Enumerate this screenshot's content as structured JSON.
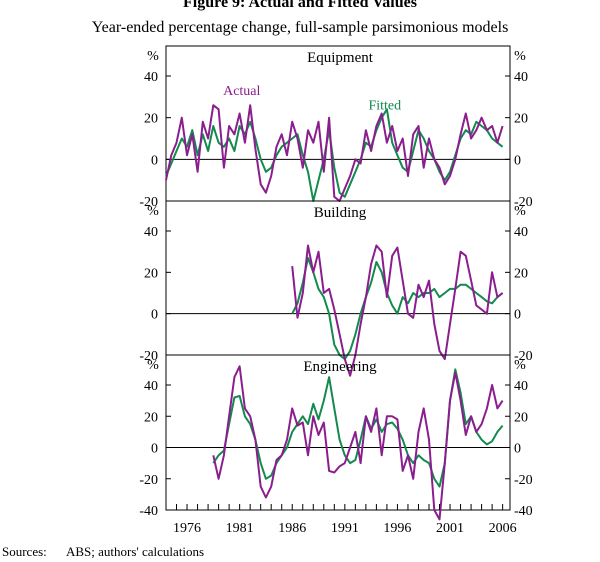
{
  "title": "Figure 9: Actual and Fitted Values",
  "subtitle": "Year-ended percentage change, full-sample parsimonious models",
  "source_label": "Sources:",
  "source_text": "ABS; authors' calculations",
  "colors": {
    "actual": "#8B1E8E",
    "fitted": "#138A4E"
  },
  "chart_data": [
    {
      "type": "line",
      "title": "Equipment",
      "ylabel": "%",
      "ylim": [
        -20,
        40
      ],
      "yticks": [
        -20,
        0,
        20,
        40
      ],
      "xlim": [
        1974,
        2006.7
      ],
      "series": [
        {
          "name": "Actual",
          "x": [
            1974.0,
            1974.5,
            1975.0,
            1975.5,
            1976.0,
            1976.5,
            1977.0,
            1977.5,
            1978.0,
            1978.5,
            1979.0,
            1979.5,
            1980.0,
            1980.5,
            1981.0,
            1981.5,
            1982.0,
            1982.5,
            1983.0,
            1983.5,
            1984.0,
            1984.5,
            1985.0,
            1985.5,
            1986.0,
            1986.5,
            1987.0,
            1987.5,
            1988.0,
            1988.5,
            1989.0,
            1989.5,
            1990.0,
            1990.5,
            1991.0,
            1991.5,
            1992.0,
            1992.5,
            1993.0,
            1993.5,
            1994.0,
            1994.5,
            1995.0,
            1995.5,
            1996.0,
            1996.5,
            1997.0,
            1997.5,
            1998.0,
            1998.5,
            1999.0,
            1999.5,
            2000.0,
            2000.5,
            2001.0,
            2001.5,
            2002.0,
            2002.5,
            2003.0,
            2003.5,
            2004.0,
            2004.5,
            2005.0,
            2005.5,
            2006.0
          ],
          "values": [
            -10,
            2,
            8,
            20,
            2,
            12,
            -6,
            18,
            10,
            26,
            24,
            -4,
            16,
            12,
            22,
            8,
            26,
            5,
            -12,
            -16,
            -8,
            6,
            12,
            2,
            18,
            10,
            -4,
            14,
            8,
            18,
            -6,
            20,
            -18,
            -20,
            -14,
            -8,
            0,
            -2,
            14,
            4,
            16,
            22,
            8,
            16,
            4,
            10,
            -8,
            12,
            16,
            -4,
            10,
            0,
            -4,
            -12,
            -8,
            0,
            12,
            22,
            10,
            14,
            20,
            14,
            16,
            8,
            16
          ]
        },
        {
          "name": "Fitted",
          "x": [
            1974.0,
            1974.5,
            1975.0,
            1975.5,
            1976.0,
            1976.5,
            1977.0,
            1977.5,
            1978.0,
            1978.5,
            1979.0,
            1979.5,
            1980.0,
            1980.5,
            1981.0,
            1981.5,
            1982.0,
            1982.5,
            1983.0,
            1983.5,
            1984.0,
            1984.5,
            1985.0,
            1985.5,
            1986.0,
            1986.5,
            1987.0,
            1987.5,
            1988.0,
            1988.5,
            1989.0,
            1989.5,
            1990.0,
            1990.5,
            1991.0,
            1991.5,
            1992.0,
            1992.5,
            1993.0,
            1993.5,
            1994.0,
            1994.5,
            1995.0,
            1995.5,
            1996.0,
            1996.5,
            1997.0,
            1997.5,
            1998.0,
            1998.5,
            1999.0,
            1999.5,
            2000.0,
            2000.5,
            2001.0,
            2001.5,
            2002.0,
            2002.5,
            2003.0,
            2003.5,
            2004.0,
            2004.5,
            2005.0,
            2005.5,
            2006.0
          ],
          "values": [
            -8,
            -2,
            4,
            10,
            6,
            14,
            2,
            12,
            4,
            16,
            8,
            6,
            10,
            4,
            16,
            12,
            18,
            10,
            0,
            -6,
            -4,
            2,
            6,
            8,
            10,
            12,
            2,
            -6,
            -20,
            -10,
            0,
            14,
            -4,
            -16,
            -18,
            -12,
            -6,
            0,
            8,
            6,
            14,
            20,
            24,
            8,
            2,
            -4,
            -6,
            4,
            14,
            10,
            4,
            0,
            -6,
            -10,
            -6,
            2,
            10,
            14,
            12,
            18,
            16,
            14,
            10,
            8,
            6
          ]
        }
      ],
      "annotations": [
        {
          "text": "Actual",
          "x": 1981.2,
          "y": 31
        },
        {
          "text": "Fitted",
          "x": 1994.8,
          "y": 24
        }
      ]
    },
    {
      "type": "line",
      "title": "Building",
      "ylabel": "%",
      "ylim": [
        -20,
        40
      ],
      "yticks": [
        -20,
        0,
        20,
        40
      ],
      "xlim": [
        1974,
        2006.7
      ],
      "series": [
        {
          "name": "Actual",
          "x": [
            1986.0,
            1986.5,
            1987.0,
            1987.5,
            1988.0,
            1988.5,
            1989.0,
            1989.5,
            1990.0,
            1990.5,
            1991.0,
            1991.5,
            1992.0,
            1992.5,
            1993.0,
            1993.5,
            1994.0,
            1994.5,
            1995.0,
            1995.5,
            1996.0,
            1996.5,
            1997.0,
            1997.5,
            1998.0,
            1998.5,
            1999.0,
            1999.5,
            2000.0,
            2000.5,
            2001.0,
            2001.5,
            2002.0,
            2002.5,
            2003.0,
            2003.5,
            2004.0,
            2004.5,
            2005.0,
            2005.5,
            2006.0
          ],
          "values": [
            23,
            -2,
            10,
            33,
            20,
            30,
            10,
            12,
            2,
            -10,
            -22,
            -30,
            -20,
            -5,
            8,
            24,
            33,
            30,
            8,
            28,
            32,
            16,
            0,
            -2,
            14,
            8,
            16,
            -5,
            -18,
            -22,
            -5,
            12,
            30,
            28,
            16,
            4,
            2,
            0,
            20,
            8,
            10
          ]
        },
        {
          "name": "Fitted",
          "x": [
            1986.0,
            1986.5,
            1987.0,
            1987.5,
            1988.0,
            1988.5,
            1989.0,
            1989.5,
            1990.0,
            1990.5,
            1991.0,
            1991.5,
            1992.0,
            1992.5,
            1993.0,
            1993.5,
            1994.0,
            1994.5,
            1995.0,
            1995.5,
            1996.0,
            1996.5,
            1997.0,
            1997.5,
            1998.0,
            1998.5,
            1999.0,
            1999.5,
            2000.0,
            2000.5,
            2001.0,
            2001.5,
            2002.0,
            2002.5,
            2003.0,
            2003.5,
            2004.0,
            2004.5,
            2005.0,
            2005.5,
            2006.0
          ],
          "values": [
            0,
            5,
            15,
            27,
            20,
            12,
            8,
            0,
            -15,
            -20,
            -22,
            -18,
            -10,
            0,
            8,
            15,
            25,
            20,
            10,
            4,
            0,
            8,
            5,
            10,
            8,
            10,
            10,
            12,
            8,
            10,
            12,
            12,
            14,
            14,
            12,
            10,
            8,
            6,
            5,
            8,
            10
          ]
        }
      ],
      "annotations": []
    },
    {
      "type": "line",
      "title": "Engineering",
      "ylabel": "%",
      "ylim": [
        -40,
        40
      ],
      "yticks": [
        -40,
        -20,
        0,
        20,
        40
      ],
      "xlim": [
        1974,
        2006.7
      ],
      "xticks": [
        1976,
        1981,
        1986,
        1991,
        1996,
        2001,
        2006
      ],
      "xticklabels": [
        "1976",
        "1981",
        "1986",
        "1991",
        "1996",
        "2001",
        "2006"
      ],
      "series": [
        {
          "name": "Actual",
          "x": [
            1978.5,
            1979.0,
            1979.5,
            1980.0,
            1980.5,
            1981.0,
            1981.5,
            1982.0,
            1982.5,
            1983.0,
            1983.5,
            1984.0,
            1984.5,
            1985.0,
            1985.5,
            1986.0,
            1986.5,
            1987.0,
            1987.5,
            1988.0,
            1988.5,
            1989.0,
            1989.5,
            1990.0,
            1990.5,
            1991.0,
            1991.5,
            1992.0,
            1992.5,
            1993.0,
            1993.5,
            1994.0,
            1994.5,
            1995.0,
            1995.5,
            1996.0,
            1996.5,
            1997.0,
            1997.5,
            1998.0,
            1998.5,
            1999.0,
            1999.5,
            2000.0,
            2000.5,
            2001.0,
            2001.5,
            2002.0,
            2002.5,
            2003.0,
            2003.5,
            2004.0,
            2004.5,
            2005.0,
            2005.5,
            2006.0
          ],
          "values": [
            -5,
            -20,
            -5,
            20,
            45,
            52,
            25,
            20,
            5,
            -25,
            -32,
            -25,
            -8,
            -5,
            5,
            25,
            14,
            16,
            -5,
            20,
            8,
            16,
            -15,
            -16,
            -12,
            -10,
            0,
            10,
            -10,
            20,
            10,
            25,
            -5,
            20,
            20,
            18,
            -15,
            -5,
            -20,
            10,
            25,
            5,
            -40,
            -46,
            -10,
            30,
            48,
            30,
            8,
            20,
            10,
            15,
            25,
            40,
            25,
            30
          ]
        },
        {
          "name": "Fitted",
          "x": [
            1978.5,
            1979.0,
            1979.5,
            1980.0,
            1980.5,
            1981.0,
            1981.5,
            1982.0,
            1982.5,
            1983.0,
            1983.5,
            1984.0,
            1984.5,
            1985.0,
            1985.5,
            1986.0,
            1986.5,
            1987.0,
            1987.5,
            1988.0,
            1988.5,
            1989.0,
            1989.5,
            1990.0,
            1990.5,
            1991.0,
            1991.5,
            1992.0,
            1992.5,
            1993.0,
            1993.5,
            1994.0,
            1994.5,
            1995.0,
            1995.5,
            1996.0,
            1996.5,
            1997.0,
            1997.5,
            1998.0,
            1998.5,
            1999.0,
            1999.5,
            2000.0,
            2000.5,
            2001.0,
            2001.5,
            2002.0,
            2002.5,
            2003.0,
            2003.5,
            2004.0,
            2004.5,
            2005.0,
            2005.5,
            2006.0
          ],
          "values": [
            -10,
            -5,
            -2,
            15,
            32,
            33,
            20,
            15,
            5,
            -10,
            -20,
            -18,
            -10,
            -5,
            0,
            10,
            15,
            20,
            15,
            28,
            18,
            30,
            45,
            25,
            5,
            -5,
            -10,
            -8,
            5,
            20,
            12,
            18,
            10,
            15,
            16,
            12,
            5,
            -5,
            -10,
            -5,
            -8,
            -10,
            -20,
            -25,
            -10,
            30,
            50,
            35,
            15,
            20,
            10,
            5,
            2,
            4,
            10,
            14
          ]
        }
      ],
      "annotations": []
    }
  ]
}
